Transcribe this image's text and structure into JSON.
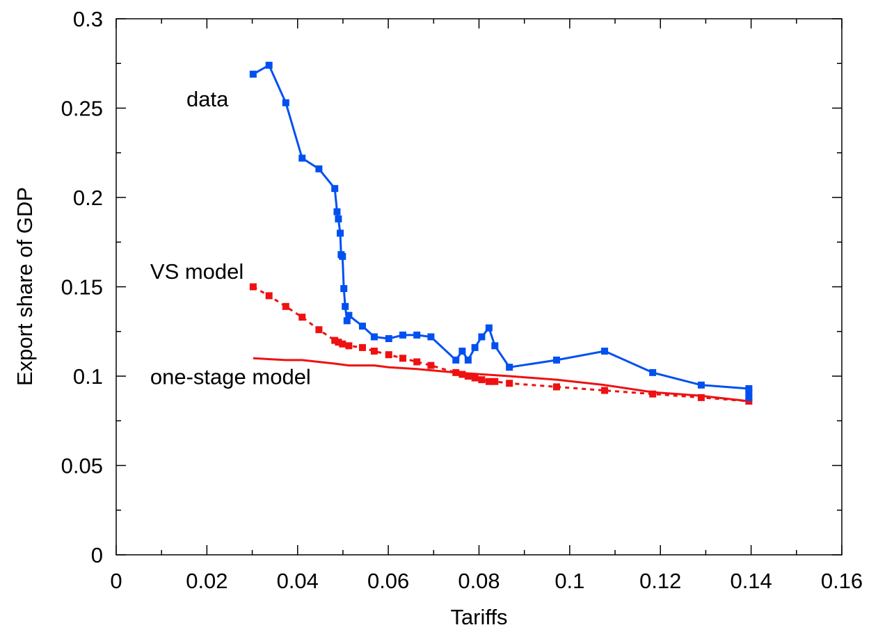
{
  "chart_data": {
    "type": "line",
    "title": "",
    "xlabel": "Tariffs",
    "ylabel": "Export share of GDP",
    "xlim": [
      0,
      0.16
    ],
    "ylim": [
      0,
      0.3
    ],
    "x_ticks": [
      0,
      0.02,
      0.04,
      0.06,
      0.08,
      0.1,
      0.12,
      0.14,
      0.16
    ],
    "x_tick_labels": [
      "0",
      "0.02",
      "0.04",
      "0.06",
      "0.08",
      "0.1",
      "0.12",
      "0.14",
      "0.16"
    ],
    "y_ticks": [
      0,
      0.05,
      0.1,
      0.15,
      0.2,
      0.25,
      0.3
    ],
    "y_tick_labels": [
      "0",
      "0.05",
      "0.1",
      "0.15",
      "0.2",
      "0.25",
      "0.3"
    ],
    "grid": false,
    "legend": "none",
    "annotations": [
      {
        "text": "data",
        "x": 0.0155,
        "y": 0.251
      },
      {
        "text": "VS model",
        "x": 0.0075,
        "y": 0.1545
      },
      {
        "text": "one-stage model",
        "x": 0.0075,
        "y": 0.0955
      }
    ],
    "series": [
      {
        "key": "data",
        "color": "#0050f0",
        "style": "solid",
        "marker": "square",
        "points": [
          [
            0.0302,
            0.269
          ],
          [
            0.0337,
            0.274
          ],
          [
            0.0374,
            0.253
          ],
          [
            0.041,
            0.222
          ],
          [
            0.0447,
            0.216
          ],
          [
            0.0482,
            0.205
          ],
          [
            0.0487,
            0.192
          ],
          [
            0.049,
            0.188
          ],
          [
            0.0494,
            0.18
          ],
          [
            0.0496,
            0.168
          ],
          [
            0.0499,
            0.167
          ],
          [
            0.0502,
            0.149
          ],
          [
            0.0505,
            0.139
          ],
          [
            0.0509,
            0.131
          ],
          [
            0.0513,
            0.134
          ],
          [
            0.0543,
            0.128
          ],
          [
            0.0569,
            0.122
          ],
          [
            0.0601,
            0.121
          ],
          [
            0.0632,
            0.123
          ],
          [
            0.0663,
            0.123
          ],
          [
            0.0694,
            0.122
          ],
          [
            0.0749,
            0.109
          ],
          [
            0.0763,
            0.114
          ],
          [
            0.0776,
            0.109
          ],
          [
            0.0791,
            0.116
          ],
          [
            0.0806,
            0.122
          ],
          [
            0.0822,
            0.127
          ],
          [
            0.0835,
            0.117
          ],
          [
            0.0867,
            0.105
          ],
          [
            0.0971,
            0.109
          ],
          [
            0.1077,
            0.114
          ],
          [
            0.1183,
            0.102
          ],
          [
            0.129,
            0.095
          ],
          [
            0.1395,
            0.093
          ],
          [
            0.1395,
            0.091
          ],
          [
            0.1395,
            0.088
          ]
        ]
      },
      {
        "key": "vs",
        "color": "#ee1111",
        "style": "dashed",
        "marker": "square",
        "points": [
          [
            0.0302,
            0.15
          ],
          [
            0.0337,
            0.145
          ],
          [
            0.0374,
            0.139
          ],
          [
            0.041,
            0.133
          ],
          [
            0.0447,
            0.126
          ],
          [
            0.0482,
            0.12
          ],
          [
            0.049,
            0.119
          ],
          [
            0.0499,
            0.118
          ],
          [
            0.0513,
            0.117
          ],
          [
            0.0543,
            0.116
          ],
          [
            0.0569,
            0.114
          ],
          [
            0.0601,
            0.112
          ],
          [
            0.0632,
            0.11
          ],
          [
            0.0663,
            0.108
          ],
          [
            0.0694,
            0.106
          ],
          [
            0.0749,
            0.102
          ],
          [
            0.0763,
            0.101
          ],
          [
            0.0776,
            0.1
          ],
          [
            0.0791,
            0.099
          ],
          [
            0.0806,
            0.098
          ],
          [
            0.0822,
            0.097
          ],
          [
            0.0835,
            0.097
          ],
          [
            0.0867,
            0.096
          ],
          [
            0.0971,
            0.094
          ],
          [
            0.1077,
            0.092
          ],
          [
            0.1183,
            0.09
          ],
          [
            0.129,
            0.088
          ],
          [
            0.1395,
            0.086
          ]
        ]
      },
      {
        "key": "one-stage",
        "color": "#ee1111",
        "style": "solid",
        "marker": "none",
        "points": [
          [
            0.0302,
            0.11
          ],
          [
            0.0374,
            0.109
          ],
          [
            0.041,
            0.109
          ],
          [
            0.0482,
            0.107
          ],
          [
            0.0513,
            0.106
          ],
          [
            0.0569,
            0.106
          ],
          [
            0.0601,
            0.105
          ],
          [
            0.0663,
            0.104
          ],
          [
            0.0749,
            0.102
          ],
          [
            0.0806,
            0.101
          ],
          [
            0.0867,
            0.1
          ],
          [
            0.0971,
            0.098
          ],
          [
            0.1077,
            0.095
          ],
          [
            0.1183,
            0.091
          ],
          [
            0.129,
            0.089
          ],
          [
            0.1395,
            0.086
          ]
        ]
      }
    ]
  }
}
